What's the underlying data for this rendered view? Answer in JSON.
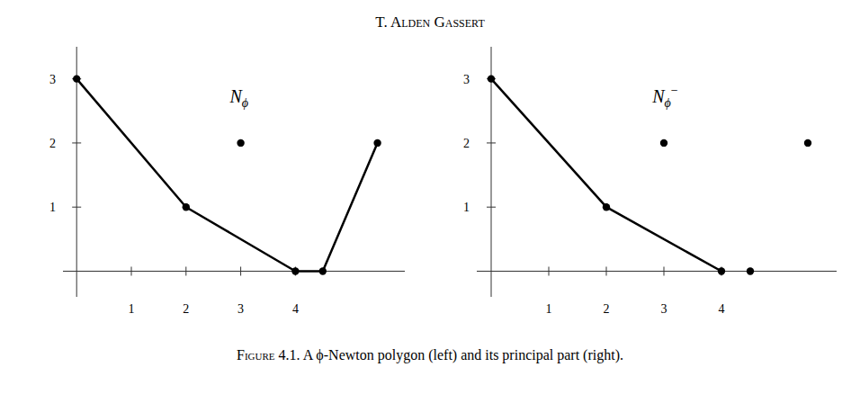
{
  "chart_data": [
    {
      "type": "line",
      "title": "T. Alden Gassert",
      "caption": "Figure 4.1. A ϕ-Newton polygon (left) and its principal part (right).",
      "series": [
        {
          "type": "line",
          "marker": "circle",
          "color": "#000000",
          "x": [
            0,
            2,
            4,
            4.5,
            5.5
          ],
          "values": [
            3,
            1,
            0,
            0,
            2
          ]
        },
        {
          "type": "scatter",
          "marker": "circle",
          "color": "#000000",
          "x": [
            3
          ],
          "values": [
            2
          ]
        }
      ],
      "annotations": [
        {
          "text": "Nϕ",
          "x": 2.8,
          "y": 2.85
        }
      ],
      "xlim": [
        -0.25,
        6.0
      ],
      "ylim": [
        -0.4,
        3.5
      ],
      "xticks": [
        1,
        2,
        3,
        4
      ],
      "yticks": [
        1,
        2,
        3
      ],
      "grid": false
    },
    {
      "type": "line",
      "series": [
        {
          "type": "line",
          "marker": "circle",
          "color": "#000000",
          "x": [
            0,
            2,
            4
          ],
          "values": [
            3,
            1,
            0
          ]
        },
        {
          "type": "scatter",
          "marker": "circle",
          "color": "#000000",
          "x": [
            3,
            4.5,
            5.5
          ],
          "values": [
            2,
            0,
            2
          ]
        }
      ],
      "annotations": [
        {
          "text": "Nϕ−",
          "x": 2.8,
          "y": 2.85
        }
      ],
      "xlim": [
        -0.25,
        6.0
      ],
      "ylim": [
        -0.4,
        3.5
      ],
      "xticks": [
        1,
        2,
        3,
        4
      ],
      "yticks": [
        1,
        2,
        3
      ],
      "grid": false
    }
  ]
}
